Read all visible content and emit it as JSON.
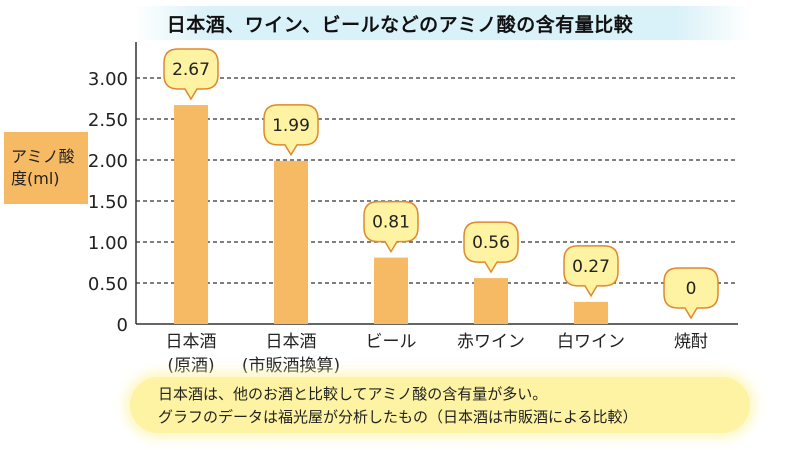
{
  "title": "日本酒、ワイン、ビールなどのアミノ酸の含有量比較",
  "chart_data": {
    "type": "bar",
    "title": "日本酒、ワイン、ビールなどのアミノ酸の含有量比較",
    "ylabel": "アミノ酸度(ml)",
    "xlabel": "",
    "categories": [
      [
        "日本酒",
        "(原酒)"
      ],
      [
        "日本酒",
        "(市販酒換算)"
      ],
      [
        "ビール"
      ],
      [
        "赤ワイン"
      ],
      [
        "白ワイン"
      ],
      [
        "焼酎"
      ]
    ],
    "values": [
      2.67,
      1.99,
      0.81,
      0.56,
      0.27,
      0
    ],
    "data_labels": [
      "2.67",
      "1.99",
      "0.81",
      "0.56",
      "0.27",
      "0"
    ],
    "yticks": [
      "0",
      "0.50",
      "1.00",
      "1.50",
      "2.00",
      "2.50",
      "3.00"
    ],
    "ylim": [
      0,
      3.25
    ],
    "grid": "horizontal dashed",
    "bar_color": "#f6b964",
    "callout_fill": "#fdf3a2",
    "callout_stroke": "#e0882c"
  },
  "caption": {
    "line1": "日本酒は、他のお酒と比較してアミノ酸の含有量が多い。",
    "line2": "グラフのデータは福光屋が分析したもの（日本酒は市販酒による比較）"
  }
}
